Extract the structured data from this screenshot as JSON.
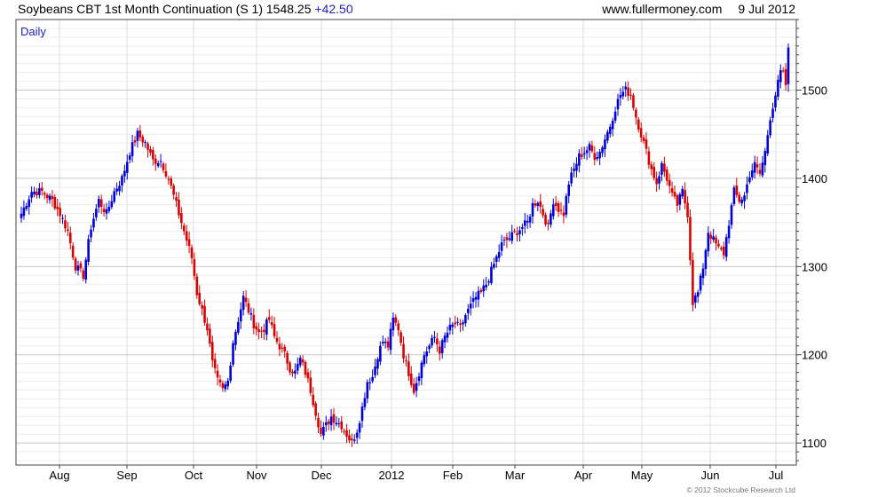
{
  "header": {
    "title": "Soybeans CBT 1st Month Continuation (S 1) 1548.25",
    "change": "+42.50",
    "site": "www.fullermoney.com",
    "date": "9 Jul 2012"
  },
  "copyright": "© 2012 Stockcube Research Ltd",
  "colors": {
    "up": "#0000dd",
    "down": "#dd0000",
    "grid": "#dddddd",
    "frame": "#444444",
    "label": "#2222cc"
  },
  "chart_data": {
    "type": "candlestick",
    "period_label": "Daily",
    "ylim": [
      1075,
      1580
    ],
    "yticks": [
      1100,
      1200,
      1300,
      1400,
      1500
    ],
    "xticks": [
      "Aug",
      "Sep",
      "Oct",
      "Nov",
      "Dec",
      "2012",
      "Feb",
      "Mar",
      "Apr",
      "May",
      "Jun",
      "Jul"
    ],
    "grid": true,
    "y_axis_position": "right",
    "close_anchors": [
      [
        0,
        1360
      ],
      [
        4,
        1385
      ],
      [
        8,
        1385
      ],
      [
        12,
        1375
      ],
      [
        15,
        1360
      ],
      [
        18,
        1340
      ],
      [
        21,
        1300
      ],
      [
        24,
        1290
      ],
      [
        27,
        1345
      ],
      [
        30,
        1375
      ],
      [
        33,
        1360
      ],
      [
        36,
        1385
      ],
      [
        39,
        1400
      ],
      [
        42,
        1430
      ],
      [
        45,
        1450
      ],
      [
        48,
        1440
      ],
      [
        51,
        1420
      ],
      [
        54,
        1420
      ],
      [
        57,
        1400
      ],
      [
        60,
        1370
      ],
      [
        63,
        1340
      ],
      [
        66,
        1310
      ],
      [
        68,
        1270
      ],
      [
        70,
        1250
      ],
      [
        72,
        1230
      ],
      [
        74,
        1190
      ],
      [
        76,
        1170
      ],
      [
        78,
        1160
      ],
      [
        80,
        1170
      ],
      [
        82,
        1215
      ],
      [
        84,
        1240
      ],
      [
        86,
        1265
      ],
      [
        88,
        1250
      ],
      [
        90,
        1235
      ],
      [
        92,
        1225
      ],
      [
        94,
        1230
      ],
      [
        96,
        1240
      ],
      [
        98,
        1220
      ],
      [
        100,
        1210
      ],
      [
        102,
        1200
      ],
      [
        104,
        1185
      ],
      [
        106,
        1180
      ],
      [
        108,
        1195
      ],
      [
        110,
        1180
      ],
      [
        112,
        1160
      ],
      [
        114,
        1135
      ],
      [
        116,
        1110
      ],
      [
        118,
        1120
      ],
      [
        120,
        1130
      ],
      [
        122,
        1125
      ],
      [
        124,
        1120
      ],
      [
        126,
        1110
      ],
      [
        128,
        1100
      ],
      [
        130,
        1115
      ],
      [
        132,
        1140
      ],
      [
        134,
        1170
      ],
      [
        136,
        1175
      ],
      [
        138,
        1200
      ],
      [
        140,
        1215
      ],
      [
        142,
        1210
      ],
      [
        144,
        1240
      ],
      [
        146,
        1230
      ],
      [
        148,
        1200
      ],
      [
        150,
        1180
      ],
      [
        152,
        1160
      ],
      [
        154,
        1180
      ],
      [
        156,
        1200
      ],
      [
        158,
        1210
      ],
      [
        160,
        1220
      ],
      [
        162,
        1205
      ],
      [
        164,
        1220
      ],
      [
        166,
        1230
      ],
      [
        168,
        1235
      ],
      [
        170,
        1230
      ],
      [
        172,
        1245
      ],
      [
        174,
        1255
      ],
      [
        176,
        1265
      ],
      [
        178,
        1270
      ],
      [
        180,
        1280
      ],
      [
        182,
        1295
      ],
      [
        184,
        1310
      ],
      [
        186,
        1325
      ],
      [
        188,
        1330
      ],
      [
        190,
        1335
      ],
      [
        192,
        1340
      ],
      [
        194,
        1345
      ],
      [
        196,
        1350
      ],
      [
        198,
        1370
      ],
      [
        200,
        1375
      ],
      [
        202,
        1360
      ],
      [
        204,
        1345
      ],
      [
        206,
        1375
      ],
      [
        208,
        1365
      ],
      [
        210,
        1360
      ],
      [
        212,
        1395
      ],
      [
        214,
        1410
      ],
      [
        216,
        1425
      ],
      [
        218,
        1430
      ],
      [
        220,
        1435
      ],
      [
        222,
        1425
      ],
      [
        224,
        1430
      ],
      [
        226,
        1445
      ],
      [
        228,
        1460
      ],
      [
        230,
        1480
      ],
      [
        232,
        1495
      ],
      [
        234,
        1500
      ],
      [
        236,
        1495
      ],
      [
        238,
        1470
      ],
      [
        240,
        1450
      ],
      [
        242,
        1430
      ],
      [
        244,
        1410
      ],
      [
        246,
        1395
      ],
      [
        248,
        1415
      ],
      [
        250,
        1400
      ],
      [
        252,
        1380
      ],
      [
        254,
        1370
      ],
      [
        256,
        1385
      ],
      [
        258,
        1360
      ],
      [
        260,
        1260
      ],
      [
        262,
        1270
      ],
      [
        264,
        1300
      ],
      [
        266,
        1340
      ],
      [
        268,
        1330
      ],
      [
        270,
        1320
      ],
      [
        272,
        1315
      ],
      [
        274,
        1350
      ],
      [
        276,
        1385
      ],
      [
        278,
        1375
      ],
      [
        280,
        1380
      ],
      [
        282,
        1405
      ],
      [
        284,
        1415
      ],
      [
        286,
        1405
      ],
      [
        288,
        1430
      ],
      [
        290,
        1470
      ],
      [
        292,
        1495
      ],
      [
        294,
        1520
      ],
      [
        296,
        1515
      ],
      [
        297,
        1548.25
      ]
    ],
    "last_close": 1548.25,
    "last_change": 42.5
  }
}
